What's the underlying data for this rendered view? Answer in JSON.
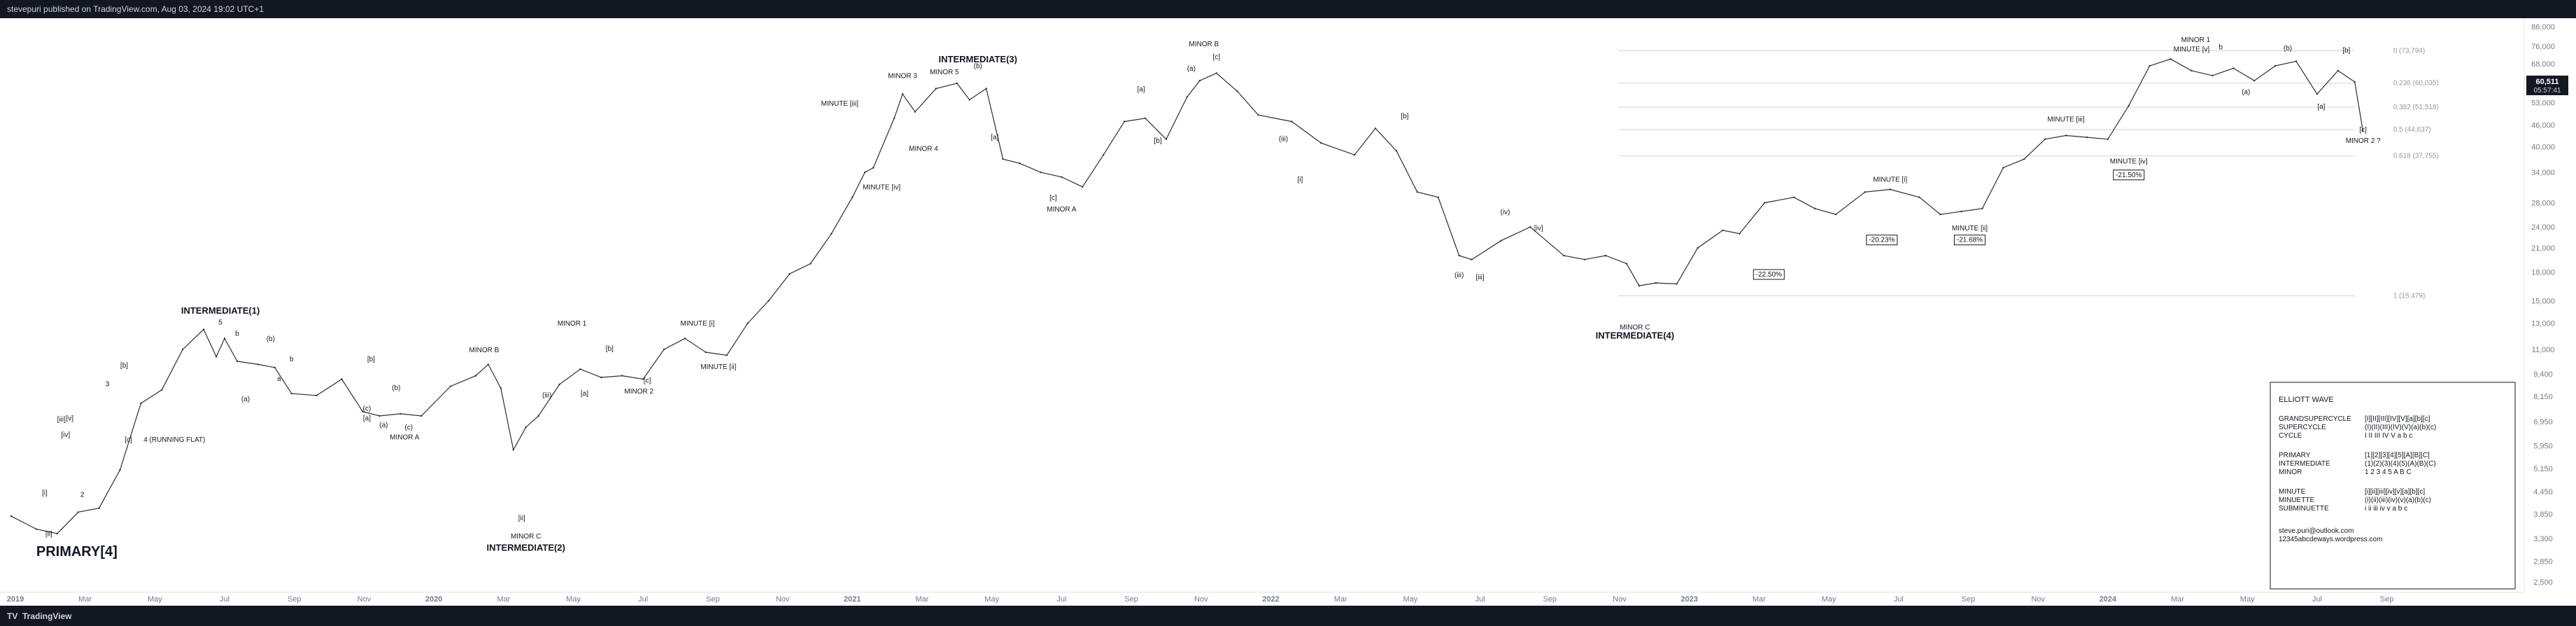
{
  "header": {
    "published_by": "stevepuri published on TradingView.com, Aug 03, 2024 19:02 UTC+1"
  },
  "footer": {
    "brand": "TradingView",
    "logo_icon": "tv-logo-icon"
  },
  "chart_data": {
    "type": "line",
    "symbol": "BTCUSD",
    "scale": "log",
    "x_ticks": [
      "2019",
      "Mar",
      "May",
      "Jul",
      "Sep",
      "Nov",
      "2020",
      "Mar",
      "May",
      "Jul",
      "Sep",
      "Nov",
      "2021",
      "Mar",
      "May",
      "Jul",
      "Sep",
      "Nov",
      "2022",
      "Mar",
      "May",
      "Jul",
      "Sep",
      "Nov",
      "2023",
      "Mar",
      "May",
      "Jul",
      "Sep",
      "Nov",
      "2024",
      "Mar",
      "May",
      "Jul",
      "Sep"
    ],
    "y_ticks": [
      "86,000",
      "76,000",
      "68,000",
      "60,000",
      "53,000",
      "46,000",
      "40,000",
      "34,000",
      "28,000",
      "24,000",
      "21,000",
      "18,000",
      "15,000",
      "13,000",
      "11,000",
      "9,400",
      "8,150",
      "6,950",
      "5,950",
      "5,150",
      "4,450",
      "3,850",
      "3,300",
      "2,850",
      "2,500"
    ],
    "ylim": [
      2500,
      90000
    ],
    "last_price": "60,511",
    "last_price_countdown": "05:57:41",
    "series": [
      {
        "x": [
          2018.99,
          2019.05,
          2019.1,
          2019.15,
          2019.2,
          2019.25,
          2019.3,
          2019.35,
          2019.4,
          2019.45,
          2019.48,
          2019.5,
          2019.53,
          2019.58,
          2019.62,
          2019.66,
          2019.72,
          2019.78,
          2019.83,
          2019.87,
          2019.92,
          2019.97,
          2020.04,
          2020.1,
          2020.13,
          2020.16,
          2020.19,
          2020.22,
          2020.25,
          2020.3,
          2020.35,
          2020.4,
          2020.45,
          2020.5,
          2020.55,
          2020.6,
          2020.65,
          2020.7,
          2020.75,
          2020.8,
          2020.85,
          2020.9,
          2020.95,
          2021.0,
          2021.03,
          2021.05,
          2021.1,
          2021.12,
          2021.15,
          2021.2,
          2021.25,
          2021.28,
          2021.32,
          2021.36,
          2021.4,
          2021.45,
          2021.5,
          2021.55,
          2021.6,
          2021.65,
          2021.7,
          2021.75,
          2021.8,
          2021.83,
          2021.87,
          2021.92,
          2021.97,
          2022.05,
          2022.12,
          2022.2,
          2022.25,
          2022.3,
          2022.35,
          2022.4,
          2022.45,
          2022.48,
          2022.55,
          2022.62,
          2022.7,
          2022.75,
          2022.8,
          2022.85,
          2022.88,
          2022.92,
          2022.97,
          2023.02,
          2023.08,
          2023.12,
          2023.18,
          2023.25,
          2023.3,
          2023.35,
          2023.42,
          2023.48,
          2023.55,
          2023.6,
          2023.65,
          2023.7,
          2023.75,
          2023.8,
          2023.85,
          2023.9,
          2023.95,
          2024.0,
          2024.05,
          2024.1,
          2024.15,
          2024.2,
          2024.25,
          2024.3,
          2024.35,
          2024.4,
          2024.45,
          2024.5,
          2024.55,
          2024.59
        ],
        "y": [
          3800,
          3500,
          3400,
          3900,
          4000,
          5100,
          7800,
          8500,
          11000,
          12500,
          10500,
          11800,
          10200,
          10000,
          9800,
          8300,
          8200,
          9100,
          7400,
          7200,
          7300,
          7200,
          8700,
          9300,
          10000,
          8600,
          5800,
          6700,
          7200,
          8800,
          9700,
          9200,
          9300,
          9100,
          11000,
          11800,
          10800,
          10600,
          13000,
          15000,
          17800,
          19000,
          23000,
          29000,
          34000,
          35000,
          48000,
          56000,
          50000,
          58000,
          60000,
          54000,
          58000,
          37000,
          36000,
          34000,
          33000,
          31000,
          38000,
          47000,
          48000,
          42000,
          55000,
          61000,
          64000,
          57000,
          49000,
          47000,
          41000,
          38000,
          45000,
          39000,
          30000,
          29000,
          20000,
          19500,
          22000,
          24000,
          20000,
          19500,
          20000,
          19000,
          16500,
          16800,
          16700,
          21000,
          23500,
          23000,
          28000,
          29000,
          27000,
          26000,
          30000,
          30500,
          29000,
          26000,
          26500,
          27000,
          35000,
          37000,
          42000,
          43000,
          42500,
          42000,
          52000,
          67000,
          70000,
          65000,
          63000,
          66000,
          61000,
          67000,
          69000,
          56000,
          65000,
          60500
        ]
      }
    ],
    "fib_levels": [
      {
        "ratio": "0",
        "price": "73,794"
      },
      {
        "ratio": "0.236",
        "price": "60,035"
      },
      {
        "ratio": "0.382",
        "price": "51,518"
      },
      {
        "ratio": "0.5",
        "price": "44,637"
      },
      {
        "ratio": "0.618",
        "price": "37,755"
      },
      {
        "ratio": "1",
        "price": "15,479"
      }
    ],
    "major_labels": [
      {
        "text": "INTERMEDIATE(1)",
        "x": 2019.49,
        "y": 13800
      },
      {
        "text": "INTERMEDIATE(2)",
        "x": 2020.22,
        "y": 3050
      },
      {
        "text": "INTERMEDIATE(3)",
        "x": 2021.3,
        "y": 68500
      },
      {
        "text": "INTERMEDIATE(4)",
        "x": 2022.87,
        "y": 11800
      },
      {
        "text": "PRIMARY[4]",
        "x": 2019.05,
        "y": 2950
      }
    ],
    "wave_labels": [
      {
        "text": "[i]",
        "x": 2019.07,
        "y": 4350
      },
      {
        "text": "[ii]",
        "x": 2019.08,
        "y": 3350
      },
      {
        "text": "[iii]",
        "x": 2019.11,
        "y": 6950
      },
      {
        "text": "[iv]",
        "x": 2019.12,
        "y": 6300
      },
      {
        "text": "[v]",
        "x": 2019.13,
        "y": 7000
      },
      {
        "text": "2",
        "x": 2019.16,
        "y": 4300
      },
      {
        "text": "3",
        "x": 2019.22,
        "y": 8700
      },
      {
        "text": "[b]",
        "x": 2019.26,
        "y": 9800
      },
      {
        "text": "[c]",
        "x": 2019.27,
        "y": 6100
      },
      {
        "text": "4 (RUNNING FLAT)",
        "x": 2019.38,
        "y": 6100
      },
      {
        "text": "5",
        "x": 2019.49,
        "y": 12900
      },
      {
        "text": "b",
        "x": 2019.53,
        "y": 12000
      },
      {
        "text": "(a)",
        "x": 2019.55,
        "y": 7900
      },
      {
        "text": "(b)",
        "x": 2019.61,
        "y": 11600
      },
      {
        "text": "a",
        "x": 2019.63,
        "y": 9000
      },
      {
        "text": "b",
        "x": 2019.66,
        "y": 10200
      },
      {
        "text": "[b]",
        "x": 2019.85,
        "y": 10200
      },
      {
        "text": "[a]",
        "x": 2019.84,
        "y": 7000
      },
      {
        "text": "(c)",
        "x": 2019.84,
        "y": 7450
      },
      {
        "text": "(b)",
        "x": 2019.91,
        "y": 8500
      },
      {
        "text": "(a)",
        "x": 2019.88,
        "y": 6700
      },
      {
        "text": "(c)",
        "x": 2019.94,
        "y": 6600
      },
      {
        "text": "MINOR A",
        "x": 2019.93,
        "y": 6200
      },
      {
        "text": "MINOR B",
        "x": 2020.12,
        "y": 10800
      },
      {
        "text": "MINOR C",
        "x": 2020.22,
        "y": 3300
      },
      {
        "text": "[ii]",
        "x": 2020.21,
        "y": 3700
      },
      {
        "text": "(iii)",
        "x": 2020.27,
        "y": 8100
      },
      {
        "text": "MINOR 1",
        "x": 2020.33,
        "y": 12800
      },
      {
        "text": "[a]",
        "x": 2020.36,
        "y": 8200
      },
      {
        "text": "[b]",
        "x": 2020.42,
        "y": 10900
      },
      {
        "text": "[c]",
        "x": 2020.51,
        "y": 8900
      },
      {
        "text": "MINOR 2",
        "x": 2020.49,
        "y": 8300
      },
      {
        "text": "MINUTE [i]",
        "x": 2020.63,
        "y": 12800
      },
      {
        "text": "MINUTE [ii]",
        "x": 2020.68,
        "y": 9700
      },
      {
        "text": "MINOR 4",
        "x": 2021.17,
        "y": 39000
      },
      {
        "text": "MINUTE [iv]",
        "x": 2021.07,
        "y": 30500
      },
      {
        "text": "MINOR 3",
        "x": 2021.12,
        "y": 62000
      },
      {
        "text": "MINOR 5",
        "x": 2021.22,
        "y": 63500
      },
      {
        "text": "MINUTE [iii]",
        "x": 2020.97,
        "y": 52000
      },
      {
        "text": "(b)",
        "x": 2021.3,
        "y": 66000
      },
      {
        "text": "[a]",
        "x": 2021.34,
        "y": 42000
      },
      {
        "text": "[c]",
        "x": 2021.48,
        "y": 28500
      },
      {
        "text": "MINOR A",
        "x": 2021.5,
        "y": 26500
      },
      {
        "text": "[a]",
        "x": 2021.69,
        "y": 57000
      },
      {
        "text": "[b]",
        "x": 2021.73,
        "y": 41000
      },
      {
        "text": "MINOR B",
        "x": 2021.84,
        "y": 76000
      },
      {
        "text": "[c]",
        "x": 2021.87,
        "y": 70000
      },
      {
        "text": "(a)",
        "x": 2021.81,
        "y": 65000
      },
      {
        "text": "[b]",
        "x": 2022.32,
        "y": 48000
      },
      {
        "text": "[i]",
        "x": 2022.07,
        "y": 32000
      },
      {
        "text": "(iii)",
        "x": 2022.03,
        "y": 41500
      },
      {
        "text": "(iii)",
        "x": 2022.45,
        "y": 17400
      },
      {
        "text": "[iii]",
        "x": 2022.5,
        "y": 17200
      },
      {
        "text": "(iv)",
        "x": 2022.56,
        "y": 26000
      },
      {
        "text": "[iv]",
        "x": 2022.64,
        "y": 23500
      },
      {
        "text": "MINOR C",
        "x": 2022.87,
        "y": 12500
      },
      {
        "text": "-22.50%",
        "x": 2023.19,
        "y": 17500
      },
      {
        "text": "MINUTE [i]",
        "x": 2023.48,
        "y": 32000
      },
      {
        "text": "-20.23%",
        "x": 2023.46,
        "y": 21800
      },
      {
        "text": "MINUTE [ii]",
        "x": 2023.67,
        "y": 23500
      },
      {
        "text": "-21.68%",
        "x": 2023.67,
        "y": 21800
      },
      {
        "text": "MINUTE [iii]",
        "x": 2023.9,
        "y": 47000
      },
      {
        "text": "MINUTE [iv]",
        "x": 2024.05,
        "y": 36000
      },
      {
        "text": "-21.50%",
        "x": 2024.05,
        "y": 33000
      },
      {
        "text": "MINOR 1",
        "x": 2024.21,
        "y": 78000
      },
      {
        "text": "MINUTE [v]",
        "x": 2024.2,
        "y": 73500
      },
      {
        "text": "b",
        "x": 2024.27,
        "y": 74500
      },
      {
        "text": "(b)",
        "x": 2024.43,
        "y": 74000
      },
      {
        "text": "[b]",
        "x": 2024.57,
        "y": 73000
      },
      {
        "text": "(a)",
        "x": 2024.33,
        "y": 56000
      },
      {
        "text": "[a]",
        "x": 2024.51,
        "y": 51000
      },
      {
        "text": "[c]",
        "x": 2024.61,
        "y": 44000
      },
      {
        "text": "MINOR 2 ?",
        "x": 2024.61,
        "y": 41000
      }
    ]
  },
  "legend": {
    "title": "ELLIOTT WAVE",
    "rows": [
      {
        "degree": "GRANDSUPERCYCLE",
        "labels": "[I][II][III][IV][V][a][b][c]"
      },
      {
        "degree": "SUPERCYCLE",
        "labels": "(I)(II)(III)(IV)(V)(a)(b)(c)"
      },
      {
        "degree": "CYCLE",
        "labels": "I  II  III  IV  V  a  b  c"
      },
      {
        "degree": "PRIMARY",
        "labels": "[1][2][3][4][5][A][B][C]"
      },
      {
        "degree": "INTERMEDIATE",
        "labels": "(1)(2)(3)(4)(5)(A)(B)(C)"
      },
      {
        "degree": "MINOR",
        "labels": "1  2  3  4  5  A  B  C"
      },
      {
        "degree": "MINUTE",
        "labels": "[i][ii][iii][iv][v][a][b][c]"
      },
      {
        "degree": "MINUETTE",
        "labels": "(i)(ii)(iii)(iv)(v)(a)(b)(c)"
      },
      {
        "degree": "SUBMINUETTE",
        "labels": "i  ii  iii  iv  v  a  b  c"
      }
    ],
    "email": "steve.puri@outlook.com",
    "site": "12345abcdeways.wordpress.com"
  }
}
